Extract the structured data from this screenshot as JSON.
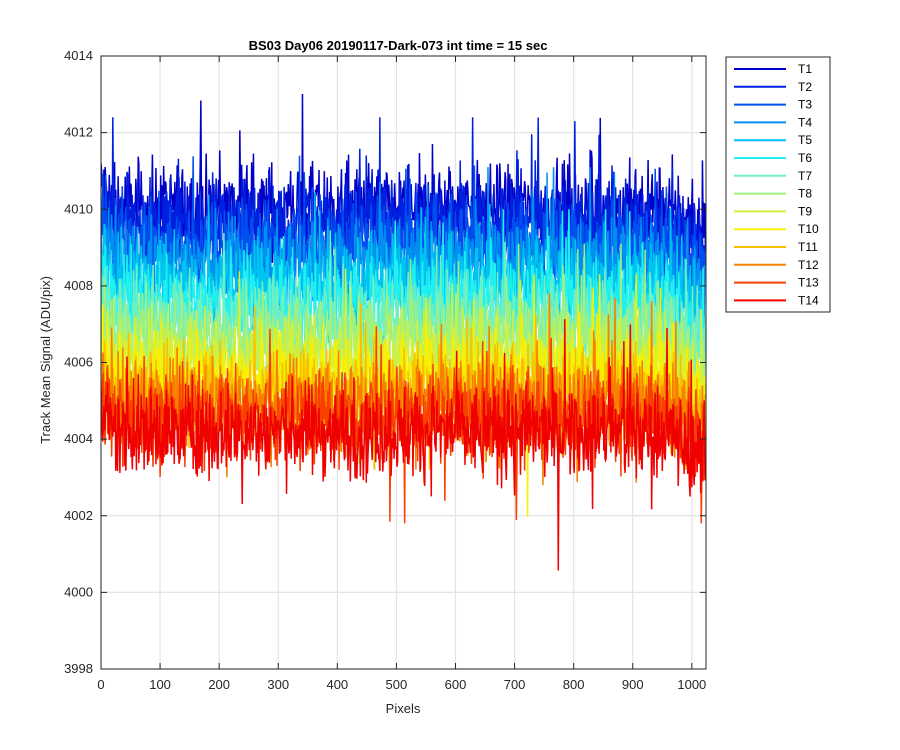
{
  "chart_data": {
    "type": "line",
    "title": "BS03 Day06 20190117-Dark-073 int time = 15 sec",
    "xlabel": "Pixels",
    "ylabel": "Track Mean Signal (ADU/pix)",
    "xlim": [
      0,
      1024
    ],
    "ylim": [
      3998,
      4014
    ],
    "xticks": [
      0,
      100,
      200,
      300,
      400,
      500,
      600,
      700,
      800,
      900,
      1000
    ],
    "yticks": [
      3998,
      4000,
      4002,
      4004,
      4006,
      4008,
      4010,
      4012,
      4014
    ],
    "grid": true,
    "legend_position": "outside-top-right",
    "series": [
      {
        "name": "T1",
        "color": "#0000c8",
        "base": 4010.0,
        "min": 4008.6,
        "max": 4013.3
      },
      {
        "name": "T2",
        "color": "#0020e0",
        "base": 4009.6,
        "min": 4008.2,
        "max": 4012.4
      },
      {
        "name": "T3",
        "color": "#0050f0",
        "base": 4009.1,
        "min": 4007.6,
        "max": 4011.4
      },
      {
        "name": "T4",
        "color": "#0090f0",
        "base": 4008.6,
        "min": 4007.0,
        "max": 4011.1
      },
      {
        "name": "T5",
        "color": "#00c4f0",
        "base": 4008.1,
        "min": 4006.5,
        "max": 4010.6
      },
      {
        "name": "T6",
        "color": "#20f0f0",
        "base": 4007.6,
        "min": 4006.0,
        "max": 4010.0
      },
      {
        "name": "T7",
        "color": "#70f0c0",
        "base": 4007.1,
        "min": 4005.4,
        "max": 4009.6
      },
      {
        "name": "T8",
        "color": "#a0f080",
        "base": 4006.6,
        "min": 4004.8,
        "max": 4009.1
      },
      {
        "name": "T9",
        "color": "#d0f040",
        "base": 4006.1,
        "min": 4002.8,
        "max": 4008.6
      },
      {
        "name": "T10",
        "color": "#f8f000",
        "base": 4005.6,
        "min": 3999.9,
        "max": 4008.3
      },
      {
        "name": "T11",
        "color": "#f8c000",
        "base": 4005.2,
        "min": 4003.2,
        "max": 4008.0
      },
      {
        "name": "T12",
        "color": "#f88000",
        "base": 4004.9,
        "min": 4002.8,
        "max": 4007.8
      },
      {
        "name": "T13",
        "color": "#f84000",
        "base": 4004.6,
        "min": 4001.8,
        "max": 4007.4
      },
      {
        "name": "T14",
        "color": "#f00000",
        "base": 4004.2,
        "min": 4000.1,
        "max": 4007.2
      }
    ]
  }
}
